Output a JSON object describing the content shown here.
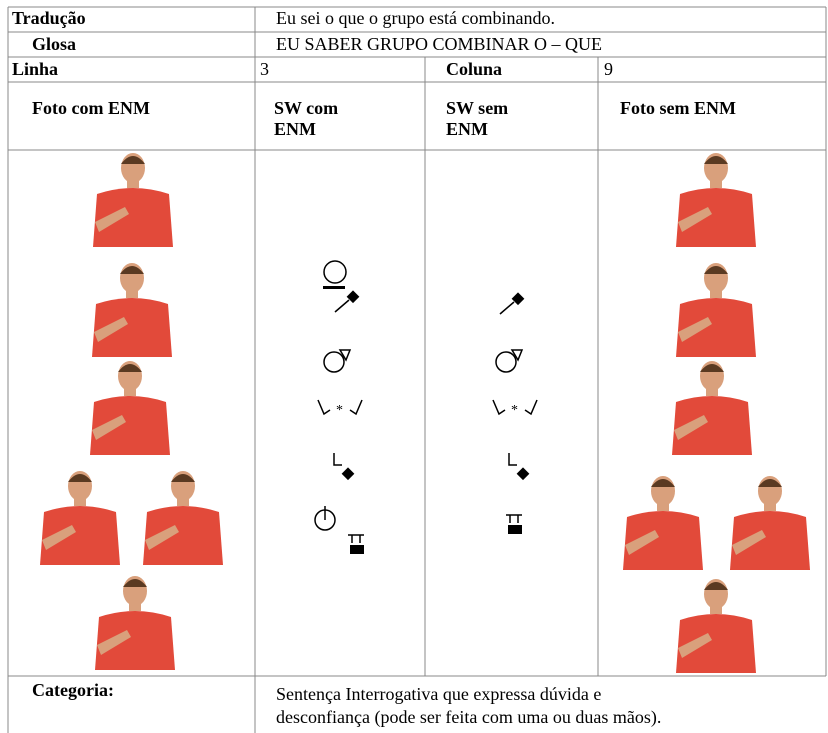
{
  "table": {
    "translation": {
      "label": "Tradução",
      "value": "Eu sei o que o grupo está combinando."
    },
    "gloss": {
      "label": "Glosa",
      "value": "EU SABER GRUPO COMBINAR O – QUE"
    },
    "line": {
      "label": "Linha",
      "value": "3"
    },
    "column": {
      "label": "Coluna",
      "value": "9"
    },
    "headers": [
      "Foto com ENM",
      "SW com ENM",
      "SW sem ENM",
      "Foto sem ENM"
    ],
    "category": {
      "label": "Categoria:",
      "lines": [
        "Sentença Interrogativa que expressa dúvida e",
        "desconfiança (pode ser feita com uma ou duas mãos)."
      ]
    }
  }
}
